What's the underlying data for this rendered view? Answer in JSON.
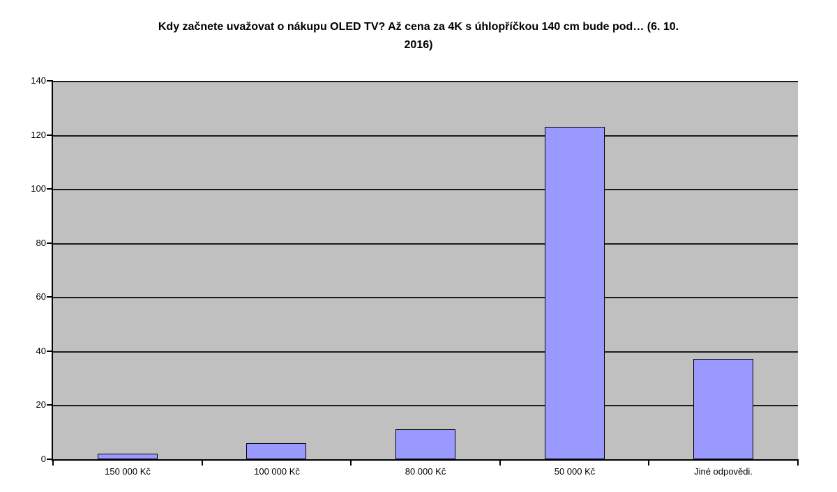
{
  "chart_data": {
    "type": "bar",
    "title": "Kdy začnete uvažovat o nákupu OLED TV? Až cena za 4K s úhlopříčkou 140 cm bude pod… (6. 10. 2016)",
    "title_lines": [
      "Kdy začnete uvažovat o nákupu OLED TV? Až cena za 4K s úhlopříčkou 140 cm bude pod… (6. 10.",
      "2016)"
    ],
    "categories": [
      "150 000 Kč",
      "100 000 Kč",
      "80 000 Kč",
      "50 000 Kč",
      "Jiné odpovědi."
    ],
    "values": [
      2,
      6,
      11,
      123,
      37
    ],
    "xlabel": "",
    "ylabel": "",
    "ylim": [
      0,
      140
    ],
    "yticks": [
      0,
      20,
      40,
      60,
      80,
      100,
      120,
      140
    ],
    "grid": true,
    "legend": false,
    "colors": {
      "bar_fill": "#9999FF",
      "bar_border": "#000000",
      "plot_background": "#C0C0C0",
      "gridline": "#1A1A1A",
      "axis": "#000000",
      "text": "#000000",
      "page_background": "#FFFFFF"
    }
  }
}
